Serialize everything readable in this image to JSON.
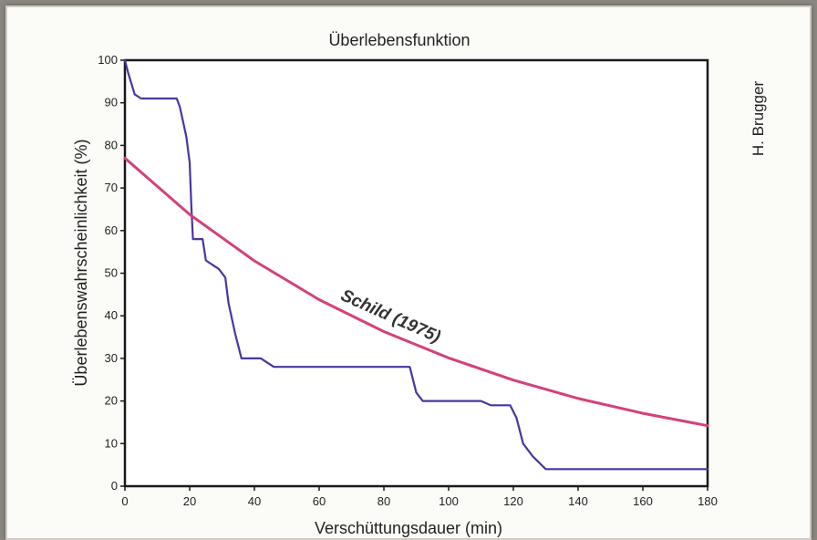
{
  "chart_data": {
    "type": "line",
    "title": "Überlebensfunktion",
    "xlabel": "Verschüttungsdauer (min)",
    "ylabel": "Überlebenswahrscheinlichkeit (%)",
    "xlim": [
      0,
      180
    ],
    "ylim": [
      0,
      100
    ],
    "xticks": [
      0,
      20,
      40,
      60,
      80,
      100,
      120,
      140,
      160,
      180
    ],
    "xtick_labels": [
      "0",
      "20",
      "40",
      "60",
      "80",
      "100",
      "120",
      "140",
      "160",
      "180"
    ],
    "yticks": [
      0,
      10,
      20,
      30,
      40,
      50,
      60,
      70,
      80,
      90,
      100
    ],
    "ytick_labels": [
      "0",
      "10",
      "20",
      "30",
      "40",
      "50",
      "60",
      "70",
      "80",
      "90",
      "100"
    ],
    "grid": false,
    "author_label": "H. Brugger",
    "series": [
      {
        "name": "",
        "color": "#4b35a0",
        "points": [
          [
            0,
            100
          ],
          [
            1,
            97
          ],
          [
            3,
            92
          ],
          [
            5,
            91
          ],
          [
            10,
            91
          ],
          [
            16,
            91
          ],
          [
            17,
            89
          ],
          [
            19,
            82
          ],
          [
            20,
            76
          ],
          [
            20.5,
            66
          ],
          [
            21,
            58
          ],
          [
            24,
            58
          ],
          [
            25,
            53
          ],
          [
            27,
            52
          ],
          [
            29,
            51
          ],
          [
            31,
            49
          ],
          [
            32,
            43
          ],
          [
            34,
            36
          ],
          [
            36,
            30
          ],
          [
            42,
            30
          ],
          [
            44,
            29
          ],
          [
            46,
            28
          ],
          [
            50,
            28
          ],
          [
            88,
            28
          ],
          [
            90,
            22
          ],
          [
            92,
            20
          ],
          [
            100,
            20
          ],
          [
            110,
            20
          ],
          [
            113,
            19
          ],
          [
            119,
            19
          ],
          [
            121,
            16
          ],
          [
            123,
            10
          ],
          [
            126,
            7
          ],
          [
            130,
            4
          ],
          [
            140,
            4
          ],
          [
            160,
            4
          ],
          [
            180,
            4
          ]
        ]
      },
      {
        "name": "Schild (1975)",
        "color": "#d4407a",
        "points": [
          [
            0,
            77
          ],
          [
            20,
            63.8
          ],
          [
            40,
            52.9
          ],
          [
            60,
            43.8
          ],
          [
            80,
            36.3
          ],
          [
            100,
            30.1
          ],
          [
            120,
            24.9
          ],
          [
            140,
            20.6
          ],
          [
            160,
            17.1
          ],
          [
            180,
            14.2
          ]
        ]
      }
    ]
  }
}
